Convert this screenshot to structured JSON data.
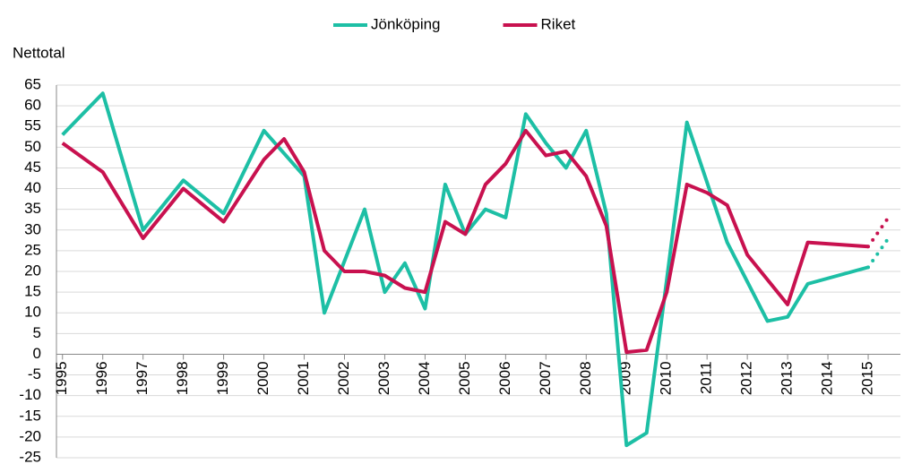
{
  "chart_data": {
    "type": "line",
    "y_label": "Nettotal",
    "xlim": [
      1994.85,
      2015.8
    ],
    "xticks": [
      1995,
      1996,
      1997,
      1998,
      1999,
      2000,
      2001,
      2002,
      2003,
      2004,
      2005,
      2006,
      2007,
      2008,
      2009,
      2010,
      2011,
      2012,
      2013,
      2014,
      2015
    ],
    "ylim": [
      -25,
      65
    ],
    "yticks": [
      -25,
      -20,
      -15,
      -10,
      -5,
      0,
      5,
      10,
      15,
      20,
      25,
      30,
      35,
      40,
      45,
      50,
      55,
      60,
      65
    ],
    "grid": true,
    "legend": "top",
    "series": [
      {
        "name": "Jönköping",
        "color": "#1dbfa5",
        "x": [
          1995,
          1996,
          1997,
          1998,
          1999,
          2000,
          2001,
          2001.5,
          2002.5,
          2003,
          2003.5,
          2004,
          2004.5,
          2005,
          2005.5,
          2006,
          2006.5,
          2007,
          2007.5,
          2008,
          2008.5,
          2009,
          2009.5,
          2010,
          2010.5,
          2011.5,
          2012.5,
          2013,
          2013.5,
          2015
        ],
        "values": [
          53,
          63,
          30,
          42,
          34,
          54,
          43,
          10,
          35,
          15,
          22,
          11,
          41,
          29,
          35,
          33,
          58,
          51,
          45,
          54,
          34,
          -22,
          -19,
          18,
          56,
          27,
          8,
          9,
          17,
          21
        ],
        "forecast_x": [
          2015.5
        ],
        "forecast_values": [
          28
        ]
      },
      {
        "name": "Riket",
        "color": "#c8114f",
        "x": [
          1995,
          1996,
          1997,
          1998,
          1999,
          2000,
          2000.5,
          2001,
          2001.5,
          2002,
          2002.5,
          2003,
          2003.5,
          2004,
          2004.5,
          2005,
          2005.5,
          2006,
          2006.5,
          2007,
          2007.5,
          2008,
          2008.5,
          2009,
          2009.5,
          2010,
          2010.5,
          2011,
          2011.5,
          2012,
          2013,
          2013.5,
          2015
        ],
        "values": [
          51,
          44,
          28,
          40,
          32,
          47,
          52,
          44,
          25,
          20,
          20,
          19,
          16,
          15,
          32,
          29,
          41,
          46,
          54,
          48,
          49,
          43,
          31,
          0.5,
          1,
          15,
          41,
          39,
          36,
          24,
          12,
          27,
          26
        ],
        "forecast_x": [
          2015.5
        ],
        "forecast_values": [
          33
        ]
      }
    ]
  }
}
